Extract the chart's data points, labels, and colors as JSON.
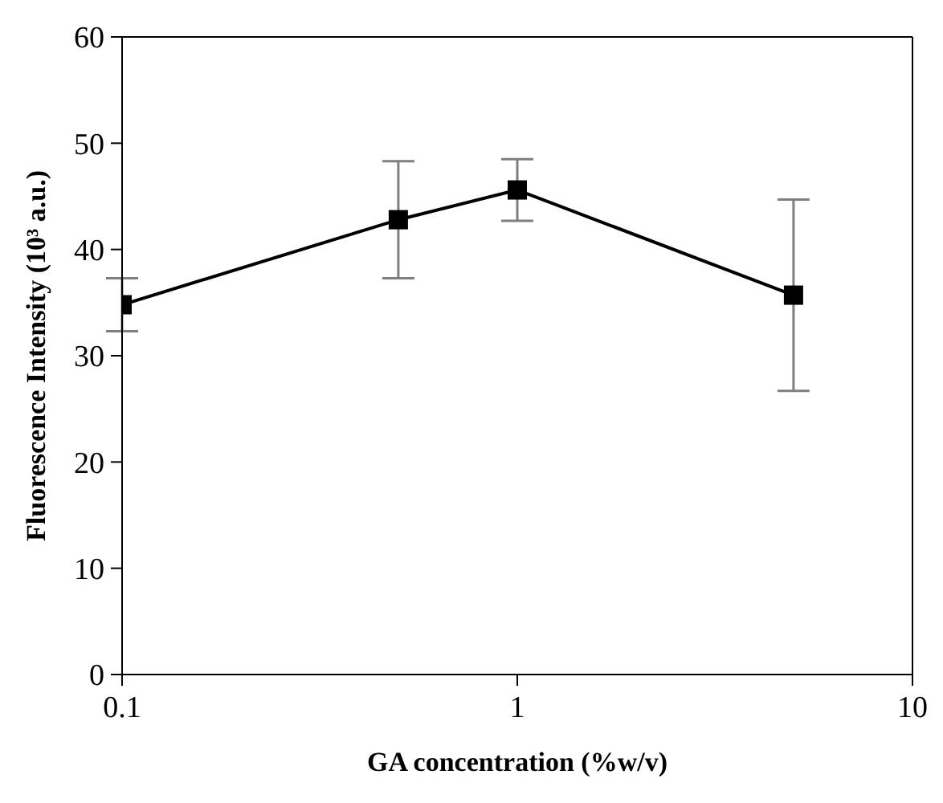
{
  "chart_data": {
    "type": "line",
    "xlabel": "GA concentration  (%w/v)",
    "ylabel": "Fluorescence Intensity (10³ a.u.)",
    "log": "x",
    "x": [
      0.1,
      0.5,
      1,
      5
    ],
    "series": [
      {
        "color": "#000000",
        "values": [
          34.8,
          42.8,
          45.6,
          35.7
        ],
        "errors": [
          2.5,
          5.5,
          2.9,
          9
        ]
      }
    ],
    "xlim": [
      0.1,
      10
    ],
    "xticks": [
      0.1,
      1,
      10
    ],
    "ylim": [
      0,
      60
    ],
    "yticks": [
      0,
      10,
      20,
      30,
      40,
      50,
      60
    ],
    "grid": false,
    "legend": false,
    "marker": "square",
    "line_style": "solid"
  }
}
